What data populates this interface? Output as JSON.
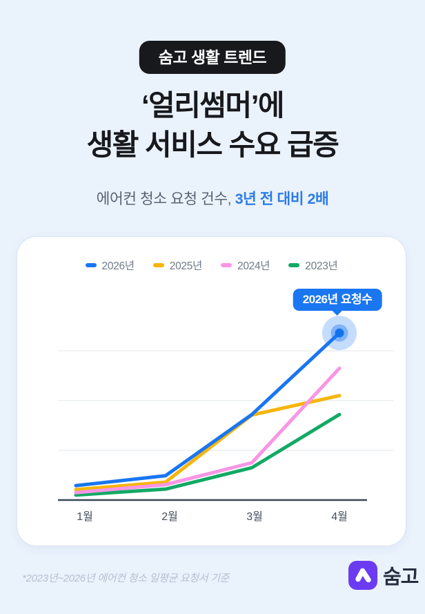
{
  "page": {
    "background_color": "#EAF2FC"
  },
  "badge": {
    "label": "숨고 생활 트렌드"
  },
  "title": {
    "line1": "‘얼리썸머’에",
    "line2": "생활 서비스 수요 급증"
  },
  "subtitle": {
    "plain": "에어컨 청소 요청 건수, ",
    "highlight": "3년 전 대비 2배",
    "highlight_color": "#2D7CE5"
  },
  "chart_data": {
    "type": "line",
    "categories": [
      "1월",
      "2월",
      "3월",
      "4월"
    ],
    "series": [
      {
        "name": "2026년",
        "color": "#1976F2",
        "values": [
          0.29,
          0.49,
          1.72,
          3.36
        ]
      },
      {
        "name": "2025년",
        "color": "#F7B50C",
        "values": [
          0.21,
          0.36,
          1.71,
          2.1
        ]
      },
      {
        "name": "2024년",
        "color": "#F995E5",
        "values": [
          0.15,
          0.31,
          0.75,
          2.65
        ]
      },
      {
        "name": "2023년",
        "color": "#12A964",
        "values": [
          0.1,
          0.22,
          0.65,
          1.72
        ]
      }
    ],
    "title": "",
    "xlabel": "",
    "ylabel": "",
    "unit": "relative daily request index (1 gridline = 1 unit)",
    "ylim": [
      0,
      3.6
    ],
    "grid": "horizontal, 3 light gridlines above dark baseline axis",
    "legend_position": "top",
    "annotation": {
      "label": "2026년 요청수",
      "series": "2026년",
      "category": "4월",
      "marker": "blue dot with double halo"
    }
  },
  "footer": {
    "note": "*2023년~2026년 에어컨 청소 일평균 요청서 기준"
  },
  "logo": {
    "icon": "soomgo-mark-icon",
    "icon_color": "#6B3BF2",
    "text": "숨고"
  }
}
